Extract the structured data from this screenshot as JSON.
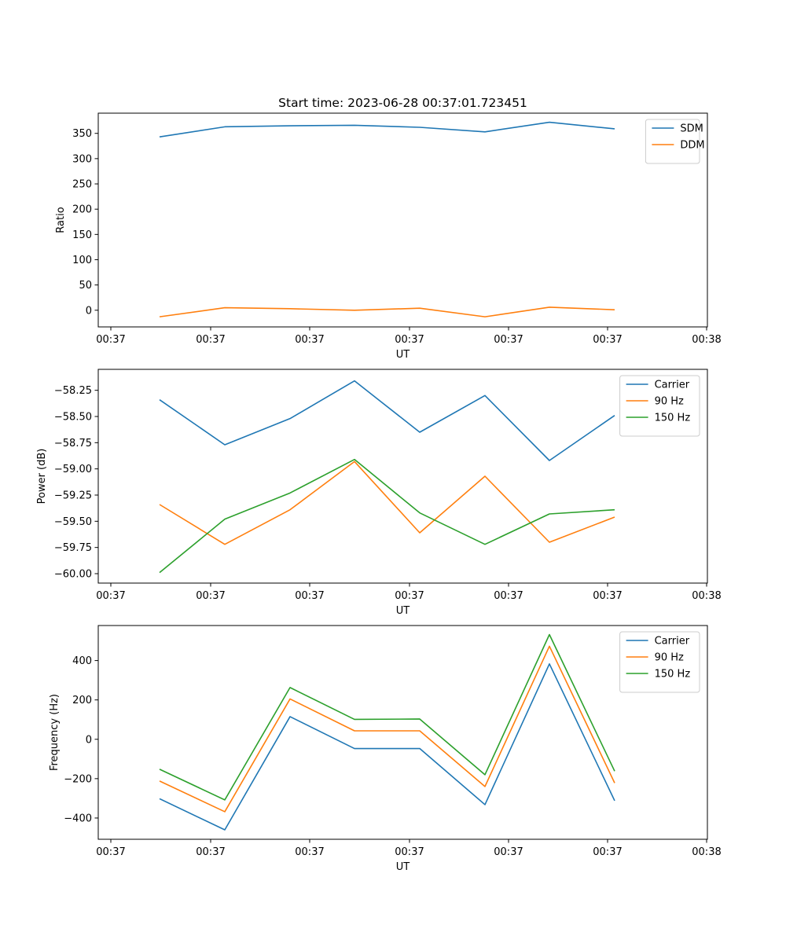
{
  "chart_data": [
    {
      "type": "line",
      "title": "Start time: 2023-06-28 00:37:01.723451",
      "xlabel": "UT",
      "ylabel": "Ratio",
      "x_ticks": [
        "00:37",
        "00:37",
        "00:37",
        "00:37",
        "00:37",
        "00:37",
        "00:38"
      ],
      "ylim": [
        -33,
        390
      ],
      "y_ticks": [
        0,
        50,
        100,
        150,
        200,
        250,
        300,
        350
      ],
      "legend": "top-right",
      "grid": false,
      "series": [
        {
          "name": "SDM",
          "color": "#1f77b4",
          "values": [
            343,
            363,
            365,
            366,
            362,
            353,
            372,
            359
          ]
        },
        {
          "name": "DDM",
          "color": "#ff7f0e",
          "values": [
            -13,
            5,
            3,
            0,
            4,
            -13,
            6,
            1
          ]
        }
      ]
    },
    {
      "type": "line",
      "title": "",
      "xlabel": "UT",
      "ylabel": "Power (dB)",
      "x_ticks": [
        "00:37",
        "00:37",
        "00:37",
        "00:37",
        "00:37",
        "00:37",
        "00:38"
      ],
      "ylim": [
        -60.09,
        -58.05
      ],
      "y_ticks": [
        -60.0,
        -59.75,
        -59.5,
        -59.25,
        -59.0,
        -58.75,
        -58.5,
        -58.25
      ],
      "legend": "top-right",
      "grid": false,
      "series": [
        {
          "name": "Carrier",
          "color": "#1f77b4",
          "values": [
            -58.34,
            -58.77,
            -58.52,
            -58.16,
            -58.65,
            -58.3,
            -58.92,
            -58.49
          ]
        },
        {
          "name": "90 Hz",
          "color": "#ff7f0e",
          "values": [
            -59.34,
            -59.72,
            -59.39,
            -58.93,
            -59.61,
            -59.07,
            -59.7,
            -59.46
          ]
        },
        {
          "name": "150 Hz",
          "color": "#2ca02c",
          "values": [
            -59.99,
            -59.48,
            -59.23,
            -58.91,
            -59.42,
            -59.72,
            -59.43,
            -59.39
          ]
        }
      ]
    },
    {
      "type": "line",
      "title": "",
      "xlabel": "UT",
      "ylabel": "Frequency (Hz)",
      "x_ticks": [
        "00:37",
        "00:37",
        "00:37",
        "00:37",
        "00:37",
        "00:37",
        "00:38"
      ],
      "ylim": [
        -508,
        578
      ],
      "y_ticks": [
        -400,
        -200,
        0,
        200,
        400
      ],
      "legend": "top-right",
      "grid": false,
      "series": [
        {
          "name": "Carrier",
          "color": "#1f77b4",
          "values": [
            -302,
            -460,
            115,
            -47,
            -47,
            -332,
            383,
            -312
          ]
        },
        {
          "name": "90 Hz",
          "color": "#ff7f0e",
          "values": [
            -212,
            -368,
            205,
            43,
            43,
            -240,
            473,
            -222
          ]
        },
        {
          "name": "150 Hz",
          "color": "#2ca02c",
          "values": [
            -152,
            -308,
            263,
            101,
            103,
            -180,
            532,
            -162
          ]
        }
      ]
    }
  ]
}
